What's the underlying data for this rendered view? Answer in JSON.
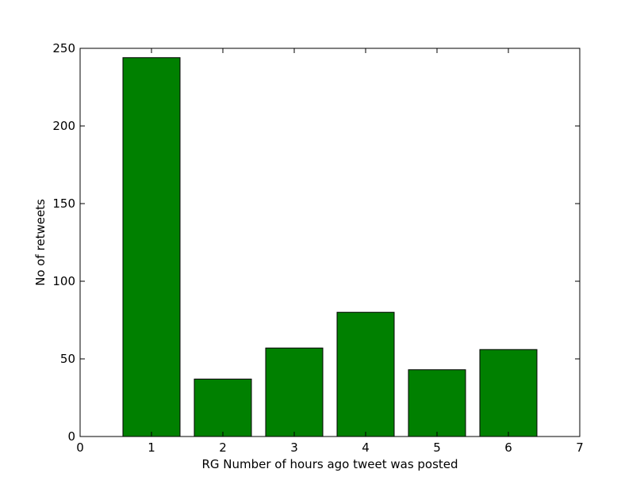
{
  "chart_data": {
    "type": "bar",
    "title": "",
    "xlabel": "RG Number of hours ago tweet was posted",
    "ylabel": "No of retweets",
    "x": [
      1,
      2,
      3,
      4,
      5,
      6
    ],
    "values": [
      244,
      37,
      57,
      80,
      43,
      56
    ],
    "xlim": [
      0,
      7
    ],
    "ylim": [
      0,
      250
    ],
    "xticks": [
      0,
      1,
      2,
      3,
      4,
      5,
      6,
      7
    ],
    "yticks": [
      0,
      50,
      100,
      150,
      200,
      250
    ],
    "bar_color": "#008000",
    "edge_color": "#000000",
    "grid": false,
    "legend": "none"
  }
}
